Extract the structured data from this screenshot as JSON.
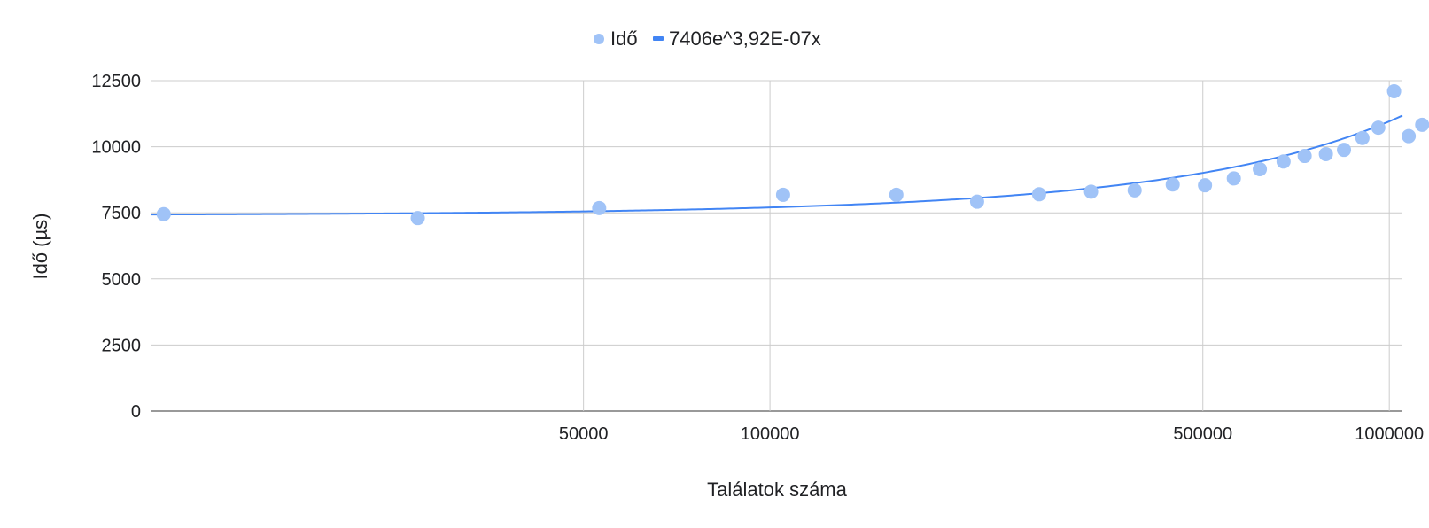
{
  "chart_data": {
    "type": "scatter",
    "xlabel": "Találatok száma",
    "ylabel": "Idő (µs)",
    "x_scale": "log",
    "xlim": [
      10000,
      1050000
    ],
    "ylim": [
      0,
      12500
    ],
    "x_ticks": [
      50000,
      100000,
      500000,
      1000000
    ],
    "y_ticks": [
      0,
      2500,
      5000,
      7500,
      10000,
      12500
    ],
    "grid": true,
    "legend_position": "top-center",
    "series": [
      {
        "name": "Idő",
        "kind": "points",
        "color": "#a0c3f7",
        "points": [
          [
            10500,
            7450
          ],
          [
            27000,
            7300
          ],
          [
            53000,
            7680
          ],
          [
            105000,
            8180
          ],
          [
            160000,
            8180
          ],
          [
            216000,
            7920
          ],
          [
            272000,
            8200
          ],
          [
            330000,
            8300
          ],
          [
            388000,
            8350
          ],
          [
            447000,
            8570
          ],
          [
            504000,
            8540
          ],
          [
            561000,
            8800
          ],
          [
            618000,
            9150
          ],
          [
            675000,
            9440
          ],
          [
            730000,
            9650
          ],
          [
            790000,
            9720
          ],
          [
            845000,
            9880
          ],
          [
            905000,
            10330
          ],
          [
            960000,
            10720
          ],
          [
            1018000,
            12100
          ],
          [
            1075000,
            10400
          ],
          [
            1130000,
            10830
          ]
        ]
      },
      {
        "name": "7406e^3,92E-07x",
        "kind": "trendline",
        "color": "#4285f4",
        "formula": {
          "a": 7406,
          "b": 3.92e-07
        }
      }
    ]
  }
}
